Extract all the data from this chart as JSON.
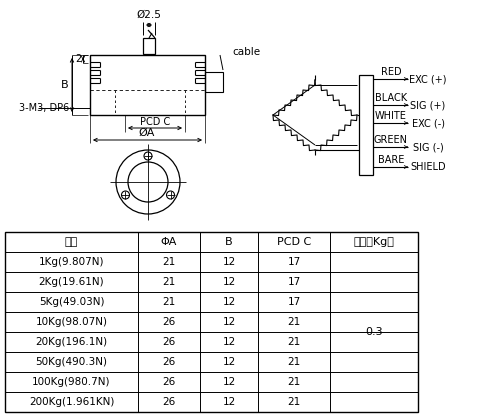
{
  "table_headers": [
    "量程",
    "ΦA",
    "B",
    "PCD C",
    "重量（Kg）"
  ],
  "table_rows": [
    [
      "1Kg(9.807N)",
      "21",
      "12",
      "17",
      ""
    ],
    [
      "2Kg(19.61N)",
      "21",
      "12",
      "17",
      ""
    ],
    [
      "5Kg(49.03N)",
      "21",
      "12",
      "17",
      ""
    ],
    [
      "10Kg(98.07N)",
      "26",
      "12",
      "21",
      ""
    ],
    [
      "20Kg(196.1N)",
      "26",
      "12",
      "21",
      ""
    ],
    [
      "50Kg(490.3N)",
      "26",
      "12",
      "21",
      ""
    ],
    [
      "100Kg(980.7N)",
      "26",
      "12",
      "21",
      ""
    ],
    [
      "200Kg(1.961KN)",
      "26",
      "12",
      "21",
      ""
    ]
  ],
  "weight_value": "0.3",
  "wire_colors": [
    "RED",
    "BLACK",
    "WHITE",
    "GREEN",
    "BARE"
  ],
  "wire_labels": [
    "EXC (+)",
    "SIG (+)",
    "EXC (-)",
    "SIG (-)",
    "SHIELD"
  ],
  "dim_label_top": "Ø2.5",
  "dim_label_B": "B",
  "dim_label_2": "2",
  "dim_label_PCD": "PCD C",
  "dim_label_A": "ØA",
  "dim_label_3M3": "3-M3, DP6",
  "cable_label": "cable",
  "bg_color": "#ffffff",
  "line_color": "#000000",
  "font_size_table": 8.0,
  "font_size_diagram": 7.0
}
